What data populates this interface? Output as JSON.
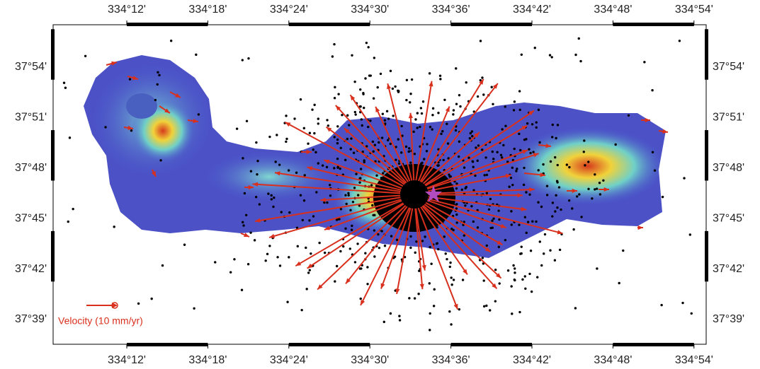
{
  "map": {
    "lon_labels": [
      "334°12'",
      "334°18'",
      "334°24'",
      "334°30'",
      "334°36'",
      "334°42'",
      "334°48'",
      "334°54'"
    ],
    "lat_labels": [
      "37°54'",
      "37°51'",
      "37°48'",
      "37°45'",
      "37°42'",
      "37°39'"
    ],
    "legend": "Velocity (10 mm/yr)"
  }
}
